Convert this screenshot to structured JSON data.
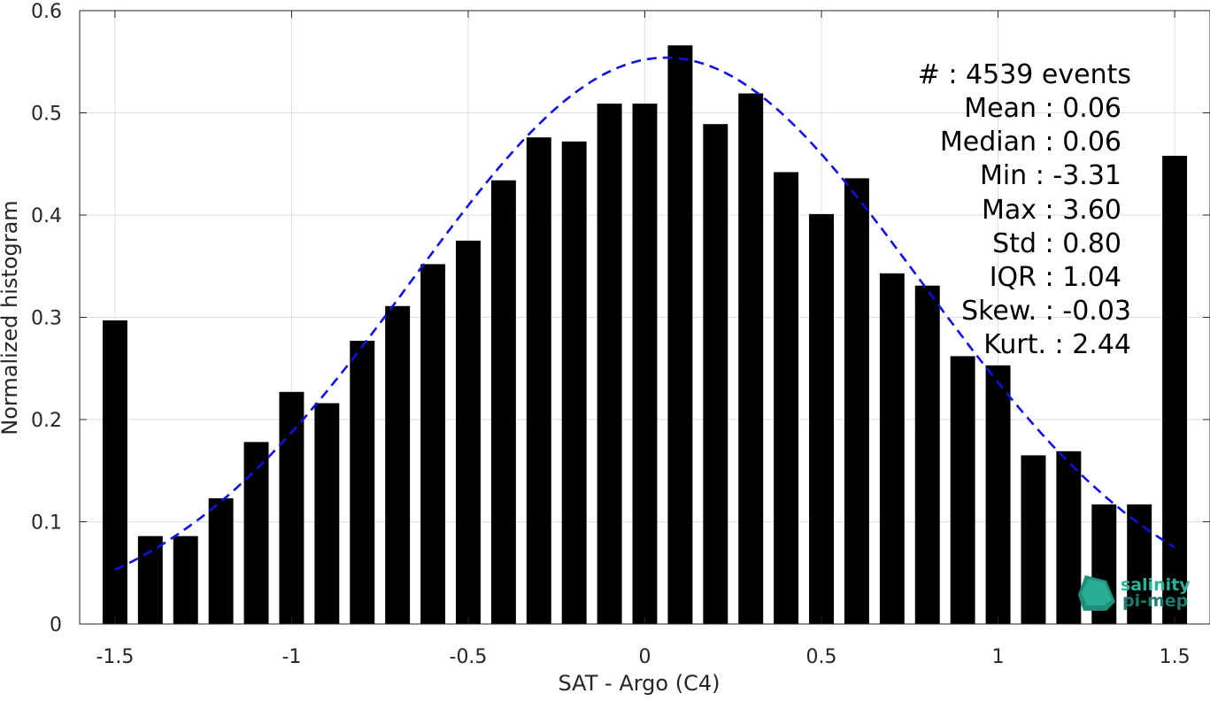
{
  "chart_data": {
    "type": "bar",
    "xlabel": "SAT - Argo (C4)",
    "ylabel": "Normalized histogram",
    "xlim": [
      -1.6,
      1.6
    ],
    "ylim": [
      0,
      0.6
    ],
    "grid": true,
    "x_ticks": [
      -1.5,
      -1,
      -0.5,
      0,
      0.5,
      1,
      1.5
    ],
    "x_tick_labels": [
      "-1.5",
      "-1",
      "-0.5",
      "0",
      "0.5",
      "1",
      "1.5"
    ],
    "y_ticks": [
      0,
      0.1,
      0.2,
      0.3,
      0.4,
      0.5,
      0.6
    ],
    "y_tick_labels": [
      "0",
      "0.1",
      "0.2",
      "0.3",
      "0.4",
      "0.5",
      "0.6"
    ],
    "bar_width": 0.07,
    "bar_color": "#000000",
    "series": [
      {
        "x": [
          -1.5,
          -1.4,
          -1.3,
          -1.2,
          -1.1,
          -1.0,
          -0.9,
          -0.8,
          -0.7,
          -0.6,
          -0.5,
          -0.4,
          -0.3,
          -0.2,
          -0.1,
          0.0,
          0.1,
          0.2,
          0.3,
          0.4,
          0.5,
          0.6,
          0.7,
          0.8,
          0.9,
          1.0,
          1.1,
          1.2,
          1.3,
          1.4,
          1.5
        ],
        "values": [
          0.297,
          0.086,
          0.086,
          0.123,
          0.178,
          0.227,
          0.216,
          0.277,
          0.311,
          0.352,
          0.375,
          0.434,
          0.476,
          0.472,
          0.509,
          0.509,
          0.566,
          0.489,
          0.519,
          0.442,
          0.401,
          0.436,
          0.343,
          0.331,
          0.262,
          0.253,
          0.165,
          0.169,
          0.117,
          0.117,
          0.458
        ]
      }
    ],
    "fit_curve": {
      "style": "dashed",
      "color": "#1010e0",
      "mean": 0.06,
      "std": 0.72,
      "peak": 0.554,
      "x_range": [
        -1.5,
        1.5
      ]
    }
  },
  "stats": [
    {
      "label": "#  : 4539 events"
    },
    {
      "label": "Mean : 0.06"
    },
    {
      "label": "Median : 0.06"
    },
    {
      "label": "Min : -3.31"
    },
    {
      "label": "Max : 3.60"
    },
    {
      "label": "Std : 0.80"
    },
    {
      "label": "IQR : 1.04"
    },
    {
      "label": "Skew. : -0.03"
    },
    {
      "label": "Kurt. : 2.44"
    }
  ],
  "logo": {
    "line1": "salinity",
    "line2": "pi-mep",
    "color1": "#2bb39a",
    "color2": "#1e7a6a"
  }
}
